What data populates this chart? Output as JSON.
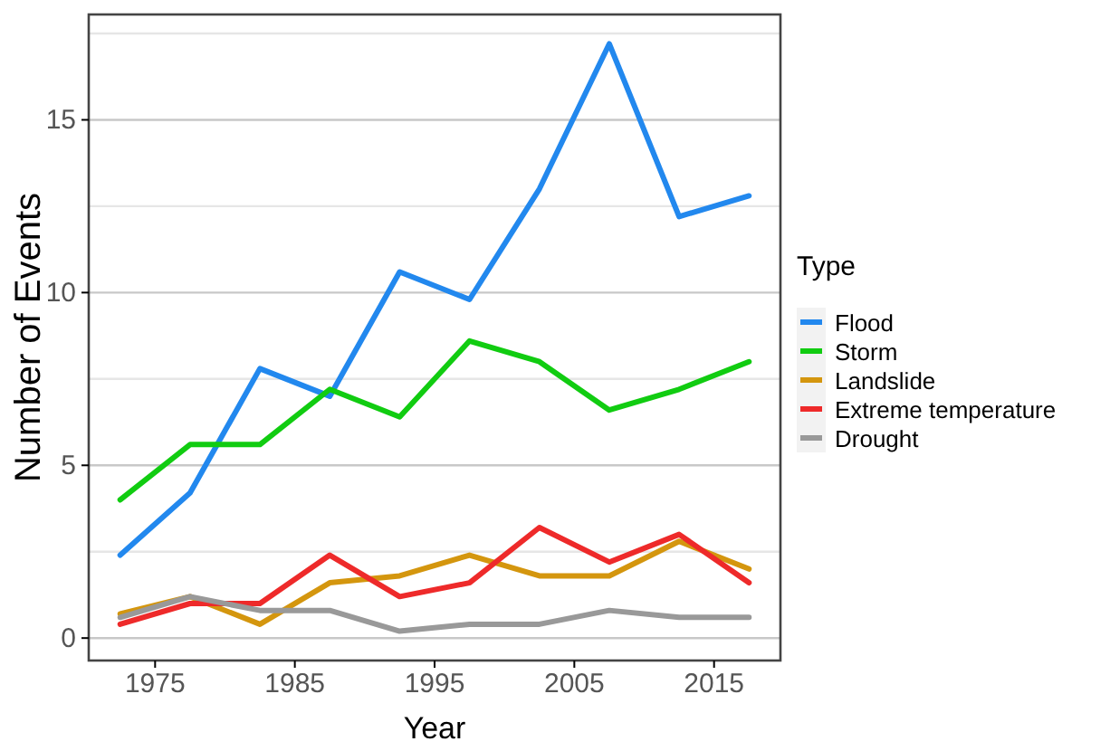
{
  "chart_data": {
    "type": "line",
    "xlabel": "Year",
    "ylabel": "Number of Events",
    "legend_title": "Type",
    "legend": "right",
    "grid": "y",
    "x": [
      1972.5,
      1977.5,
      1982.5,
      1987.5,
      1992.5,
      1997.5,
      2002.5,
      2007.5,
      2012.5,
      2017.5
    ],
    "xlim": [
      1970.25,
      2019.75
    ],
    "xticks": [
      1975,
      1985,
      1995,
      2005,
      2015
    ],
    "ylim": [
      -0.65,
      18.05
    ],
    "yticks": [
      0,
      5,
      10,
      15,
      {
        "value": 2.5,
        "label": null
      },
      {
        "value": 7.5,
        "label": null
      },
      {
        "value": 12.5,
        "label": null
      },
      {
        "value": 17.5,
        "label": null
      }
    ],
    "series": [
      {
        "name": "Flood",
        "color": "#2288ee",
        "values": [
          2.4,
          4.2,
          7.8,
          7.0,
          10.6,
          9.8,
          13.0,
          17.2,
          12.2,
          12.8
        ]
      },
      {
        "name": "Storm",
        "color": "#11cc11",
        "values": [
          4.0,
          5.6,
          5.6,
          7.2,
          6.4,
          8.6,
          8.0,
          6.6,
          7.2,
          8.0
        ]
      },
      {
        "name": "Landslide",
        "color": "#d4960e",
        "values": [
          0.7,
          1.2,
          0.4,
          1.6,
          1.8,
          2.4,
          1.8,
          1.8,
          2.8,
          2.0
        ]
      },
      {
        "name": "Extreme temperature",
        "color": "#ee2a2a",
        "values": [
          0.4,
          1.0,
          1.0,
          2.4,
          1.2,
          1.6,
          3.2,
          2.2,
          3.0,
          1.6
        ]
      },
      {
        "name": "Drought",
        "color": "#999999",
        "values": [
          0.6,
          1.2,
          0.8,
          0.8,
          0.2,
          0.4,
          0.4,
          0.8,
          0.6,
          0.6
        ]
      }
    ]
  }
}
